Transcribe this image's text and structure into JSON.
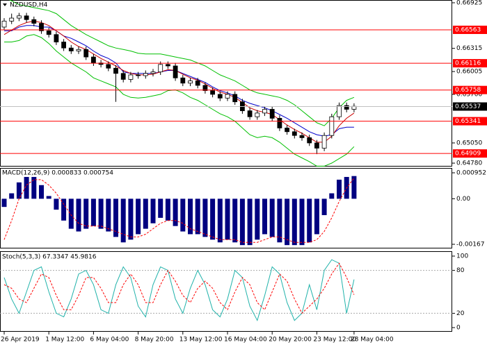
{
  "chart_data": [
    {
      "type": "candlestick",
      "title": "NZDUSD,H4",
      "open": [
        0.666,
        0.6668,
        0.6672,
        0.6675,
        0.667,
        0.6665,
        0.6655,
        0.665,
        0.664,
        0.6632,
        0.6628,
        0.663,
        0.662,
        0.6612,
        0.661,
        0.6605,
        0.6598,
        0.659,
        0.6596,
        0.6595,
        0.6598,
        0.66,
        0.661,
        0.6608,
        0.6592,
        0.6585,
        0.6588,
        0.6582,
        0.6575,
        0.657,
        0.6565,
        0.657,
        0.656,
        0.6548,
        0.654,
        0.6545,
        0.655,
        0.6538,
        0.6525,
        0.652,
        0.6515,
        0.6512,
        0.6505,
        0.6498,
        0.6515,
        0.654,
        0.6555,
        0.655
      ],
      "high": [
        0.6672,
        0.6678,
        0.6679,
        0.6679,
        0.6674,
        0.6669,
        0.6659,
        0.6654,
        0.6644,
        0.6636,
        0.6634,
        0.6634,
        0.6624,
        0.6616,
        0.6614,
        0.6609,
        0.6602,
        0.66,
        0.66,
        0.6602,
        0.6604,
        0.6614,
        0.6614,
        0.6612,
        0.6596,
        0.6592,
        0.6592,
        0.6586,
        0.6579,
        0.6574,
        0.6574,
        0.6574,
        0.6564,
        0.6552,
        0.6549,
        0.6554,
        0.6554,
        0.6542,
        0.6529,
        0.6524,
        0.6519,
        0.6516,
        0.6509,
        0.6519,
        0.6544,
        0.6559,
        0.6559,
        0.6558
      ],
      "low": [
        0.6656,
        0.6664,
        0.6668,
        0.6666,
        0.6661,
        0.6651,
        0.6646,
        0.6636,
        0.6628,
        0.6624,
        0.6624,
        0.6616,
        0.6608,
        0.6606,
        0.6601,
        0.656,
        0.6586,
        0.6586,
        0.6591,
        0.6591,
        0.6594,
        0.6596,
        0.6604,
        0.6588,
        0.6581,
        0.6581,
        0.6578,
        0.6571,
        0.6566,
        0.6561,
        0.6561,
        0.6556,
        0.6544,
        0.6536,
        0.6536,
        0.6541,
        0.6534,
        0.6521,
        0.6516,
        0.6511,
        0.6508,
        0.6501,
        0.649,
        0.6494,
        0.6511,
        0.6536,
        0.6546,
        0.6546
      ],
      "close": [
        0.6668,
        0.6672,
        0.6675,
        0.667,
        0.6665,
        0.6655,
        0.665,
        0.664,
        0.6632,
        0.6628,
        0.663,
        0.662,
        0.6612,
        0.661,
        0.6605,
        0.6598,
        0.659,
        0.6596,
        0.6595,
        0.6598,
        0.66,
        0.661,
        0.6608,
        0.6592,
        0.6585,
        0.6588,
        0.6582,
        0.6575,
        0.657,
        0.6565,
        0.657,
        0.656,
        0.6548,
        0.654,
        0.6545,
        0.655,
        0.6538,
        0.6525,
        0.652,
        0.6515,
        0.6512,
        0.6505,
        0.6498,
        0.6515,
        0.654,
        0.6555,
        0.655,
        0.6554
      ],
      "series": [
        {
          "color": "#00c000",
          "values": [
            0.67,
            0.6695,
            0.669,
            0.6688,
            0.6686,
            0.6684,
            0.6682,
            0.6678,
            0.667,
            0.6662,
            0.6656,
            0.665,
            0.6645,
            0.664,
            0.6635,
            0.6632,
            0.663,
            0.6628,
            0.6625,
            0.6624,
            0.6624,
            0.6624,
            0.6622,
            0.662,
            0.6618,
            0.6616,
            0.6612,
            0.6608,
            0.6602,
            0.6596,
            0.6592,
            0.6588,
            0.6582,
            0.6576,
            0.6572,
            0.657,
            0.6568,
            0.6566,
            0.6562,
            0.6556,
            0.6548,
            0.654,
            0.6532,
            0.6528,
            0.6538,
            0.6552,
            0.6562,
            0.6566
          ]
        },
        {
          "color": "#00c000",
          "values": [
            0.664,
            0.664,
            0.6642,
            0.6648,
            0.665,
            0.6646,
            0.6638,
            0.6628,
            0.662,
            0.6612,
            0.6606,
            0.66,
            0.6592,
            0.6588,
            0.6584,
            0.658,
            0.657,
            0.6566,
            0.6565,
            0.6566,
            0.6568,
            0.657,
            0.6575,
            0.6576,
            0.6572,
            0.6566,
            0.6562,
            0.6556,
            0.655,
            0.6544,
            0.654,
            0.6534,
            0.6525,
            0.6516,
            0.6512,
            0.6514,
            0.6512,
            0.6506,
            0.6498,
            0.649,
            0.6485,
            0.648,
            0.6474,
            0.6474,
            0.6478,
            0.6484,
            0.649,
            0.65
          ]
        },
        {
          "color": "#0000cc",
          "values": [
            0.6655,
            0.6655,
            0.666,
            0.6662,
            0.6662,
            0.666,
            0.666,
            0.6655,
            0.6648,
            0.6645,
            0.664,
            0.6635,
            0.6628,
            0.6622,
            0.6618,
            0.6612,
            0.66,
            0.6598,
            0.6598,
            0.6598,
            0.6598,
            0.66,
            0.6602,
            0.6602,
            0.6598,
            0.6594,
            0.659,
            0.6586,
            0.658,
            0.6575,
            0.6572,
            0.6568,
            0.6562,
            0.6558,
            0.6555,
            0.6552,
            0.6548,
            0.6543,
            0.6538,
            0.6532,
            0.6526,
            0.652,
            0.6516,
            0.6514,
            0.6516,
            0.6524,
            0.6526,
            0.6526
          ]
        },
        {
          "color": "#cc0000",
          "values": [
            0.665,
            0.6656,
            0.6662,
            0.6666,
            0.6668,
            0.6666,
            0.6662,
            0.6655,
            0.6648,
            0.664,
            0.6634,
            0.663,
            0.6624,
            0.6618,
            0.6613,
            0.6608,
            0.6602,
            0.6598,
            0.6596,
            0.6596,
            0.6597,
            0.66,
            0.6603,
            0.6602,
            0.6597,
            0.6592,
            0.6589,
            0.6584,
            0.6578,
            0.6573,
            0.657,
            0.6566,
            0.6559,
            0.6552,
            0.6548,
            0.6546,
            0.6543,
            0.6536,
            0.6529,
            0.6523,
            0.6518,
            0.6512,
            0.6506,
            0.6506,
            0.6514,
            0.6528,
            0.6538,
            0.6545
          ]
        }
      ],
      "levels": [
        0.66563,
        0.66116,
        0.65758,
        0.65341,
        0.64909
      ],
      "level_color": "#ff0000",
      "current_price": 0.65537,
      "ylim": [
        0.64734,
        0.66962
      ],
      "yticks": [
        0.66925,
        0.66315,
        0.66005,
        {
          "value": 0.657,
          "label": "0.65700"
        },
        {
          "value": 0.6505,
          "label": "0.65050"
        },
        {
          "value": 0.6478,
          "label": "0.64780"
        }
      ]
    },
    {
      "type": "macd",
      "title": "MACD(12,26,9) 0.000833 0.000754",
      "histogram": {
        "color": "#000080",
        "values": [
          -0.0003,
          0.0002,
          0.0006,
          0.0008,
          0.0008,
          0.0005,
          0.0001,
          -0.0004,
          -0.0008,
          -0.0011,
          -0.0012,
          -0.0011,
          -0.001,
          -0.0011,
          -0.0012,
          -0.0014,
          -0.0016,
          -0.0015,
          -0.0013,
          -0.0011,
          -0.0009,
          -0.0007,
          -0.0008,
          -0.001,
          -0.0012,
          -0.0013,
          -0.0013,
          -0.0014,
          -0.0015,
          -0.0016,
          -0.0015,
          -0.0016,
          -0.0017,
          -0.0017,
          -0.0015,
          -0.0013,
          -0.0014,
          -0.0016,
          -0.0017,
          -0.0017,
          -0.0017,
          -0.0016,
          -0.0013,
          -0.0006,
          0.0002,
          0.0007,
          0.0008,
          0.000833
        ]
      },
      "signal": {
        "color": "#ff0000",
        "values": [
          -0.0015,
          -0.0008,
          0.0,
          0.0005,
          0.0007,
          0.0007,
          0.0005,
          0.0002,
          -0.0002,
          -0.0006,
          -0.0009,
          -0.001,
          -0.001,
          -0.001,
          -0.0011,
          -0.0012,
          -0.0013,
          -0.0014,
          -0.0014,
          -0.0013,
          -0.0011,
          -0.0009,
          -0.0008,
          -0.0008,
          -0.0009,
          -0.0011,
          -0.0012,
          -0.0013,
          -0.0014,
          -0.0015,
          -0.0015,
          -0.0015,
          -0.0016,
          -0.0016,
          -0.0016,
          -0.0015,
          -0.0014,
          -0.0014,
          -0.0015,
          -0.0016,
          -0.0016,
          -0.0016,
          -0.0015,
          -0.0012,
          -0.0007,
          -0.0001,
          0.0004,
          0.000754
        ]
      },
      "ylim": [
        -0.001823,
        0.00113
      ],
      "yticks": [
        0.000952,
        {
          "value": 0,
          "label": "0.00"
        },
        -0.00167
      ]
    },
    {
      "type": "stoch",
      "title": "Stoch(5,3,3) 67.3347 45.9816",
      "series": [
        {
          "color": "#20b2aa",
          "values": [
            70,
            40,
            20,
            50,
            80,
            85,
            50,
            20,
            15,
            40,
            75,
            80,
            60,
            25,
            20,
            60,
            85,
            70,
            30,
            15,
            60,
            85,
            80,
            40,
            20,
            55,
            80,
            60,
            25,
            15,
            40,
            80,
            70,
            30,
            10,
            45,
            85,
            75,
            35,
            10,
            20,
            60,
            25,
            80,
            95,
            90,
            20,
            67.3347
          ]
        },
        {
          "color": "#ff0000",
          "dashed": true,
          "values": [
            60,
            55,
            40,
            35,
            55,
            75,
            70,
            45,
            25,
            25,
            45,
            70,
            70,
            55,
            35,
            35,
            60,
            75,
            60,
            35,
            35,
            60,
            80,
            65,
            45,
            35,
            55,
            65,
            55,
            35,
            25,
            50,
            70,
            60,
            35,
            25,
            50,
            75,
            65,
            40,
            20,
            30,
            40,
            55,
            75,
            90,
            70,
            45.9816
          ]
        }
      ],
      "levels": [
        80,
        20
      ],
      "ylim": [
        -5.8,
        106.8
      ],
      "yticks": [
        100,
        80,
        20,
        0
      ],
      "categories": [
        "26 Apr 2019",
        null,
        null,
        null,
        null,
        null,
        "1 May 12:00",
        null,
        null,
        null,
        null,
        null,
        "6 May 04:00",
        null,
        null,
        null,
        null,
        null,
        "8 May 20:00",
        null,
        null,
        null,
        null,
        null,
        "13 May 12:00",
        null,
        null,
        null,
        null,
        null,
        "16 May 04:00",
        null,
        null,
        null,
        null,
        null,
        "20 May 20:00",
        null,
        null,
        null,
        null,
        null,
        "23 May 12:00",
        null,
        null,
        null,
        null,
        "28 May 04:00"
      ]
    }
  ]
}
